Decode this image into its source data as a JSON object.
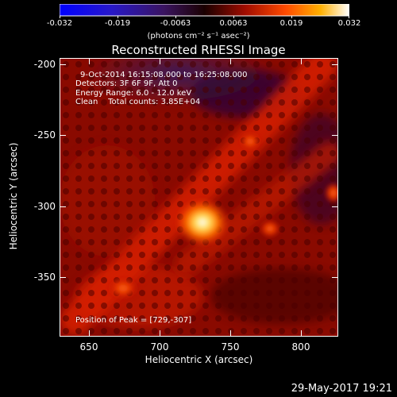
{
  "colorbar": {
    "ticks": [
      "-0.032",
      "-0.019",
      "-0.0063",
      "0.0063",
      "0.019",
      "0.032"
    ],
    "units": "(photons cm⁻² s⁻¹ asec⁻²)"
  },
  "title": "Reconstructed RHESSI Image",
  "info": {
    "line1": "9-Oct-2014 16:15:08.000 to 16:25:08.000",
    "line2": "Detectors: 3F 6F 9F, Att 0",
    "line3": "Energy Range: 6.0 - 12.0 keV",
    "line4": "Clean    Total counts: 3.85E+04",
    "peak": "Position of Peak = [729,-307]"
  },
  "axes": {
    "xlabel": "Heliocentric X (arcsec)",
    "ylabel": "Heliocentric Y (arcsec)",
    "xticks": [
      "650",
      "700",
      "750",
      "800"
    ],
    "yticks": [
      "-200",
      "-250",
      "-300",
      "-350"
    ]
  },
  "timestamp": "29-May-2017 19:21",
  "colors": {
    "background": "#000000",
    "colormap": [
      "#0000ff",
      "#3b1aa8",
      "#2a0050",
      "#3a0000",
      "#b01000",
      "#ff4800",
      "#ffb400",
      "#ffffff"
    ]
  }
}
